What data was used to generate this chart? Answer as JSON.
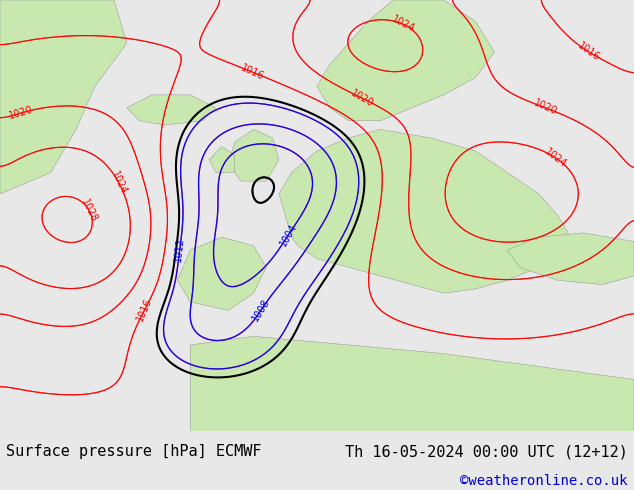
{
  "title_left": "Surface pressure [hPa] ECMWF",
  "title_right": "Th 16-05-2024 00:00 UTC (12+12)",
  "credit": "©weatheronline.co.uk",
  "bg_color": "#e8e8e8",
  "map_bg_sea": "#d0e8f0",
  "map_bg_land": "#c8e8b0",
  "footer_bg": "#f0f0f0",
  "footer_text_color": "#000000",
  "credit_color": "#0000cc",
  "font_size_footer": 11,
  "font_size_credit": 10
}
